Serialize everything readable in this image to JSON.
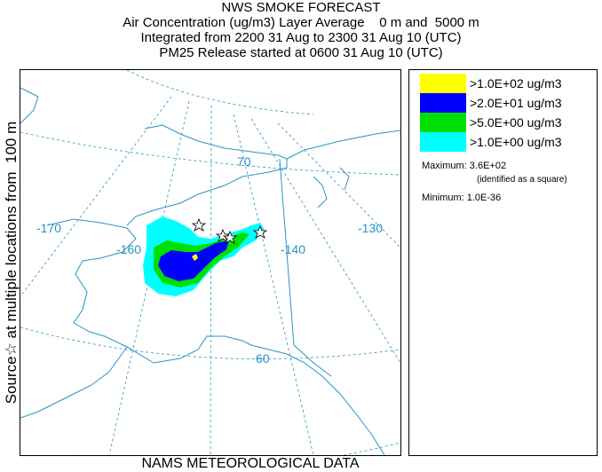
{
  "title": {
    "line1": "NWS SMOKE FORECAST",
    "line2": "Air Concentration (ug/m3) Layer Average    0 m and  5000 m",
    "line3": "Integrated from 2200 31 Aug to 2300 31 Aug 10 (UTC)",
    "line4": "PM25 Release started at 0600 31 Aug 10 (UTC)"
  },
  "side_label": "Source☆ at multiple locations from  100 m",
  "footer": "NAMS METEOROLOGICAL DATA",
  "map": {
    "labels": {
      "lon_170": "-170",
      "lon_160": "-160",
      "lon_140": "-140",
      "lon_130": "-130",
      "lat_70": "70",
      "lat_60": "60"
    },
    "colors": {
      "grid": "#2b93c5",
      "coast": "#2b93c5",
      "border": "#2b93c5"
    }
  },
  "legend": {
    "items": [
      {
        "label": ">1.0E+02 ug/m3",
        "color": "#ffff00"
      },
      {
        "label": ">2.0E+01 ug/m3",
        "color": "#0000ff"
      },
      {
        "label": ">5.0E+00 ug/m3",
        "color": "#00e000"
      },
      {
        "label": ">1.0E+00 ug/m3",
        "color": "#00ffff"
      }
    ],
    "maximum_label": "Maximum: 3.6E+02",
    "maximum_note": "(identified as a square)",
    "minimum_label": "Minimum: 1.0E-36"
  }
}
